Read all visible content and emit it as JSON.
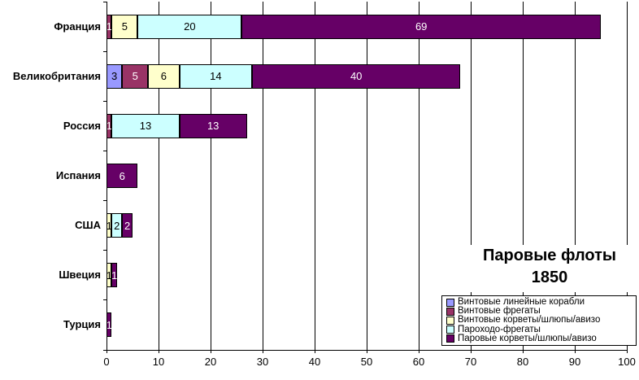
{
  "chart_data": {
    "type": "bar",
    "orientation": "horizontal",
    "stacked": true,
    "title": "Паровые флоты",
    "subtitle": "1850",
    "xlabel": "",
    "ylabel": "",
    "xlim": [
      0,
      100
    ],
    "x_ticks": [
      0,
      10,
      20,
      30,
      40,
      50,
      60,
      70,
      80,
      90,
      100
    ],
    "grid": "vertical",
    "legend_position": "inside-bottom-right",
    "categories": [
      "Франция",
      "Великобритания",
      "Россия",
      "Испания",
      "США",
      "Швеция",
      "Турция"
    ],
    "series": [
      {
        "name": "Винтовые линейные корабли",
        "color": "#9999FF",
        "label_color": "#000000",
        "values": [
          0,
          3,
          0,
          0,
          0,
          0,
          0
        ]
      },
      {
        "name": "Винтовые фрегаты",
        "color": "#993366",
        "label_color": "#FFFFFF",
        "values": [
          1,
          5,
          1,
          0,
          0,
          0,
          0
        ]
      },
      {
        "name": "Винтовые корветы/шлюпы/авизо",
        "color": "#FFFFCC",
        "label_color": "#000000",
        "values": [
          5,
          6,
          0,
          0,
          1,
          1,
          0
        ]
      },
      {
        "name": "Пароходо-фрегаты",
        "color": "#CCFFFF",
        "label_color": "#000000",
        "values": [
          20,
          14,
          13,
          0,
          2,
          0,
          0
        ]
      },
      {
        "name": "Паровые корветы/шлюпы/авизо",
        "color": "#660066",
        "label_color": "#FFFFFF",
        "values": [
          69,
          40,
          13,
          6,
          2,
          1,
          1
        ]
      }
    ],
    "totals": [
      95,
      68,
      27,
      6,
      5,
      2,
      1
    ]
  },
  "colors": {
    "background": "#FFFFFF",
    "axis": "#000000",
    "gridline": "#000000",
    "bar_border": "#000000",
    "legend_border": "#000000",
    "title_text": "#000000"
  }
}
